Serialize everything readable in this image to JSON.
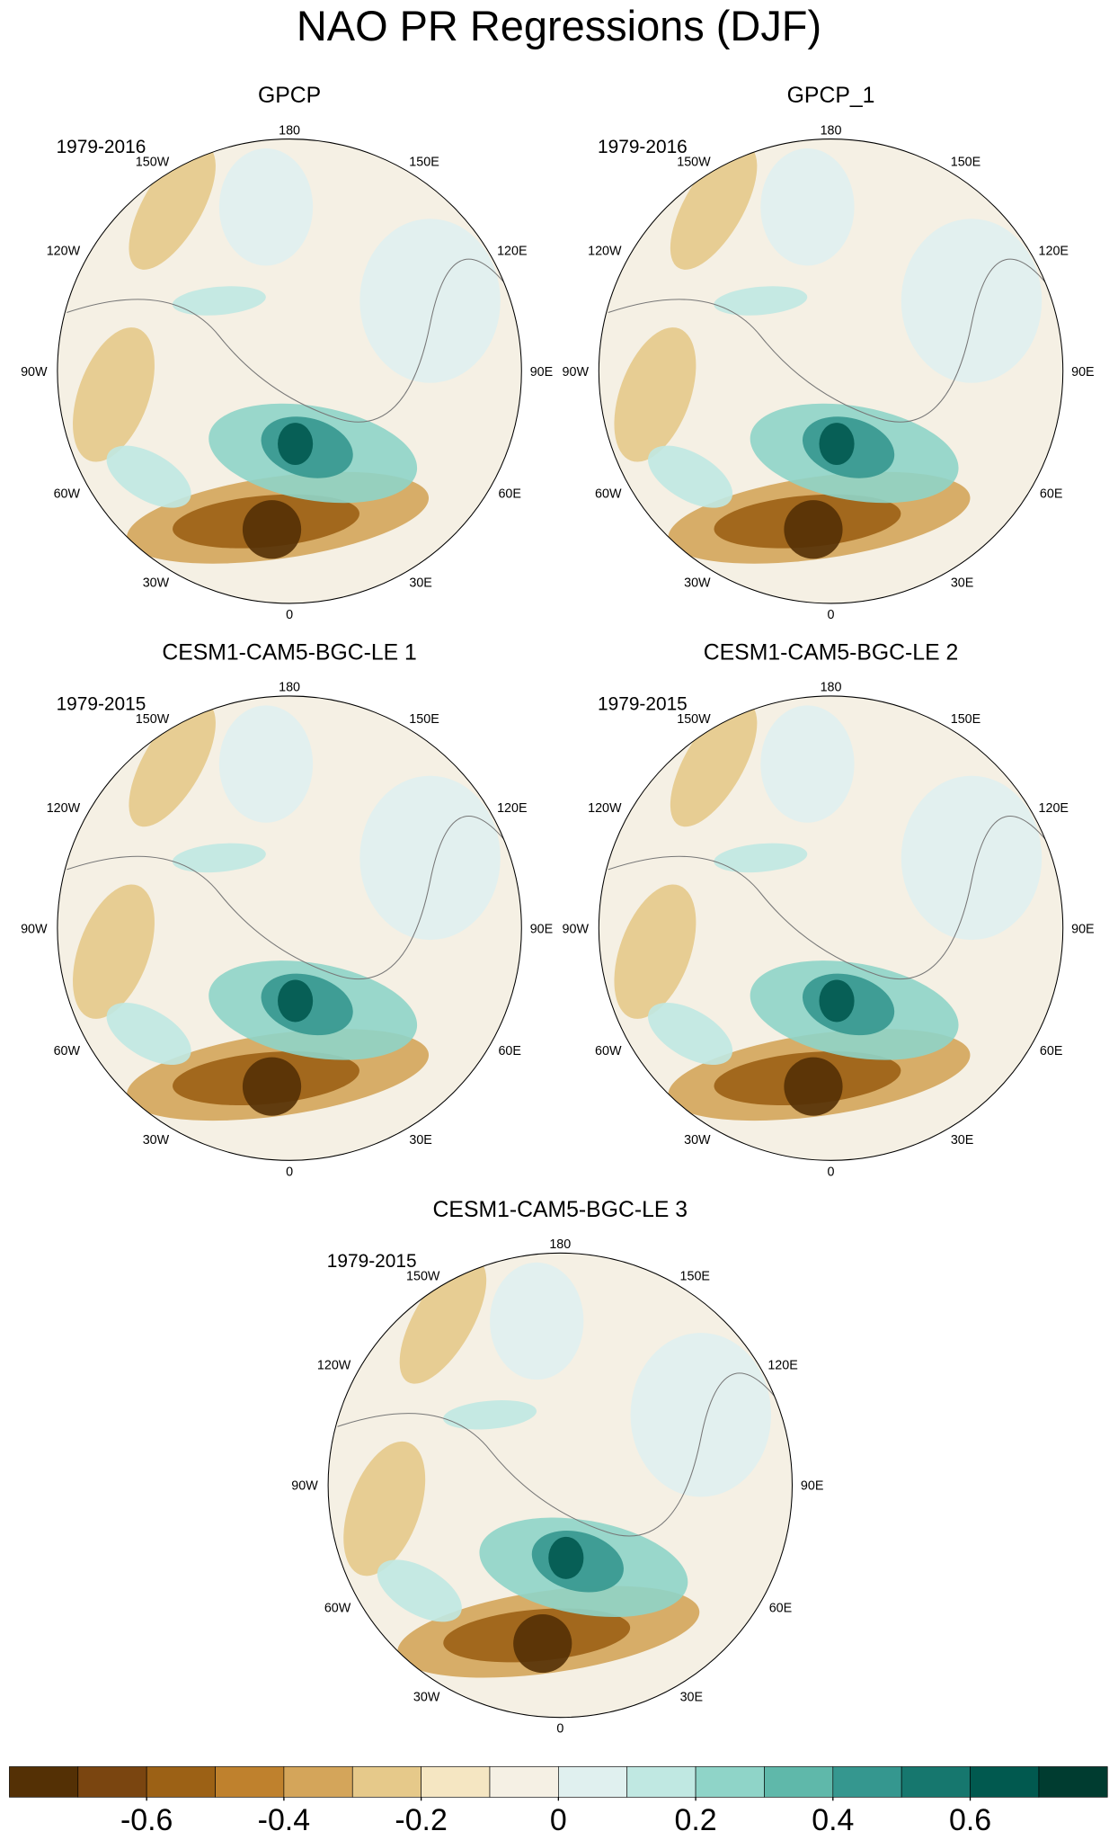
{
  "title": "NAO PR Regressions (DJF)",
  "panels": [
    {
      "title": "GPCP",
      "period": "1979-2016"
    },
    {
      "title": "GPCP_1",
      "period": "1979-2016"
    },
    {
      "title": "CESM1-CAM5-BGC-LE 1",
      "period": "1979-2015"
    },
    {
      "title": "CESM1-CAM5-BGC-LE 2",
      "period": "1979-2015"
    },
    {
      "title": "CESM1-CAM5-BGC-LE 3",
      "period": "1979-2015"
    }
  ],
  "lon_labels": [
    "180",
    "150E",
    "120E",
    "90E",
    "60E",
    "30E",
    "0",
    "30W",
    "60W",
    "90W",
    "120W",
    "150W"
  ],
  "colorbar": {
    "colors": [
      "#543005",
      "#7a4510",
      "#9c6115",
      "#bf812d",
      "#d4a55a",
      "#e6c98a",
      "#f5e6c2",
      "#f5f0e4",
      "#e0f0ef",
      "#c0e8e2",
      "#8fd4c8",
      "#5fb8aa",
      "#35978f",
      "#16776e",
      "#01594f",
      "#003c30"
    ],
    "lim": [
      -0.8,
      0.8
    ],
    "ticks": [
      -0.6,
      -0.4,
      -0.2,
      0,
      0.2,
      0.4,
      0.6
    ]
  }
}
